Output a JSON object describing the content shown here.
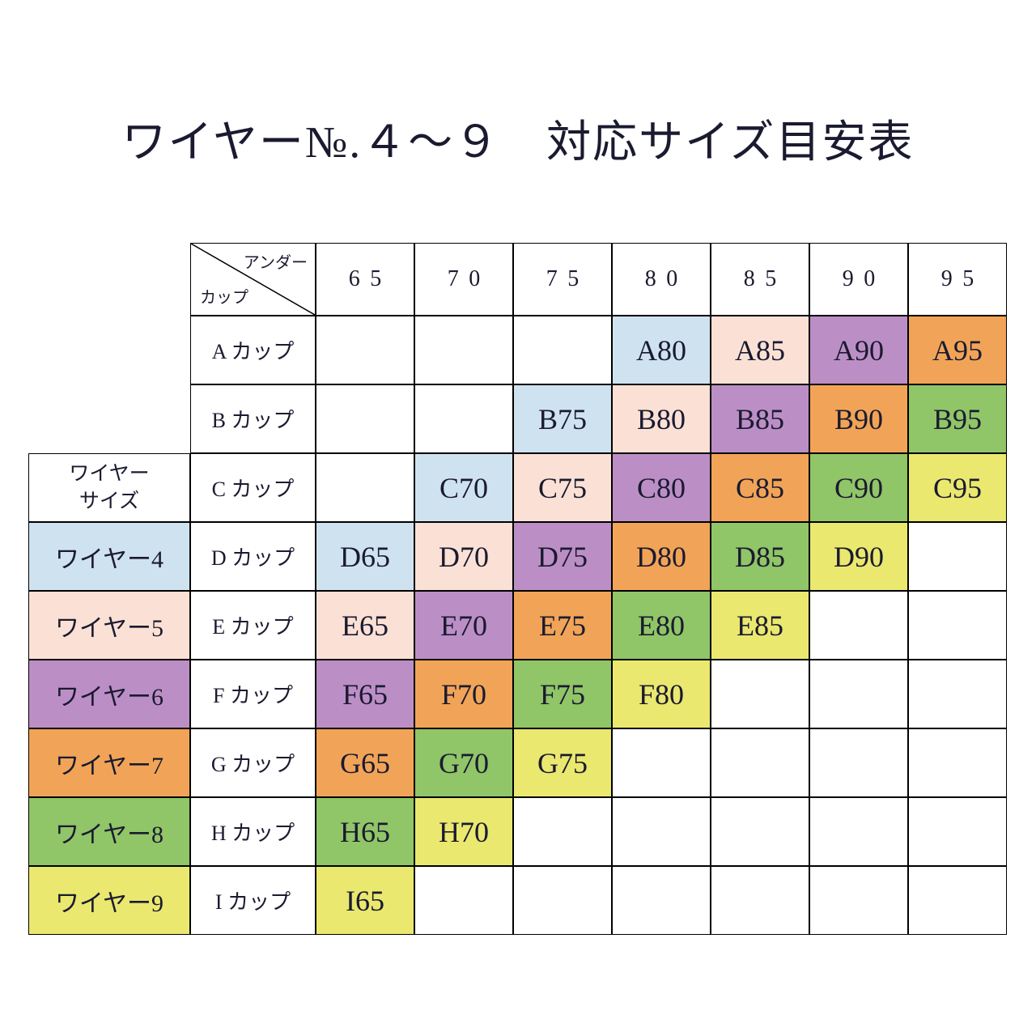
{
  "page": {
    "title": "ワイヤー№.４～９　対応サイズ目安表"
  },
  "colors": {
    "wire4": "#cfe2f0",
    "wire5": "#fbe1d5",
    "wire6": "#bc8ec6",
    "wire7": "#f1a457",
    "wire8": "#90c568",
    "wire9": "#eae86f",
    "text": "#1a1a30",
    "border": "#000000",
    "background": "#ffffff"
  },
  "table": {
    "corner": {
      "top_label": "アンダー",
      "bottom_label": "カップ"
    },
    "legend_header_lines": [
      "ワイヤー",
      "サイズ"
    ]
  },
  "chart_data": {
    "type": "table",
    "title": "ワイヤー№.４～９　対応サイズ目安表",
    "columns": [
      "65",
      "70",
      "75",
      "80",
      "85",
      "90",
      "95"
    ],
    "row_headers": [
      "A カップ",
      "B カップ",
      "C カップ",
      "D カップ",
      "E カップ",
      "F カップ",
      "G カップ",
      "H カップ",
      "I カップ"
    ],
    "cells": [
      [
        "",
        "",
        "",
        "A80",
        "A85",
        "A90",
        "A95"
      ],
      [
        "",
        "",
        "B75",
        "B80",
        "B85",
        "B90",
        "B95"
      ],
      [
        "",
        "C70",
        "C75",
        "C80",
        "C85",
        "C90",
        "C95"
      ],
      [
        "D65",
        "D70",
        "D75",
        "D80",
        "D85",
        "D90",
        ""
      ],
      [
        "E65",
        "E70",
        "E75",
        "E80",
        "E85",
        "",
        ""
      ],
      [
        "F65",
        "F70",
        "F75",
        "F80",
        "",
        "",
        ""
      ],
      [
        "G65",
        "G70",
        "G75",
        "",
        "",
        "",
        ""
      ],
      [
        "H65",
        "H70",
        "",
        "",
        "",
        "",
        ""
      ],
      [
        "I65",
        "",
        "",
        "",
        "",
        "",
        ""
      ]
    ],
    "wire_mapping": [
      [
        null,
        null,
        null,
        4,
        5,
        6,
        7
      ],
      [
        null,
        null,
        4,
        5,
        6,
        7,
        8
      ],
      [
        null,
        4,
        5,
        6,
        7,
        8,
        9
      ],
      [
        4,
        5,
        6,
        7,
        8,
        9,
        null
      ],
      [
        5,
        6,
        7,
        8,
        9,
        null,
        null
      ],
      [
        6,
        7,
        8,
        9,
        null,
        null,
        null
      ],
      [
        7,
        8,
        9,
        null,
        null,
        null,
        null
      ],
      [
        8,
        9,
        null,
        null,
        null,
        null,
        null
      ],
      [
        9,
        null,
        null,
        null,
        null,
        null,
        null
      ]
    ],
    "legend": [
      "ワイヤー4",
      "ワイヤー5",
      "ワイヤー6",
      "ワイヤー7",
      "ワイヤー8",
      "ワイヤー9"
    ],
    "legend_wires": [
      4,
      5,
      6,
      7,
      8,
      9
    ]
  }
}
